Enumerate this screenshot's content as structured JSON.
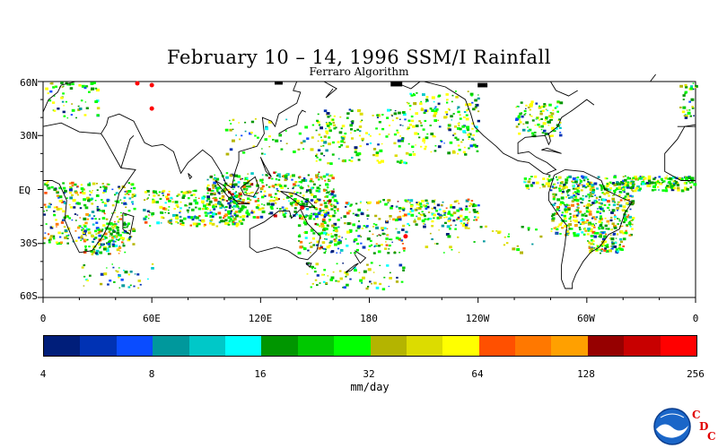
{
  "title": "February 10 – 14, 1996 SSM/I Rainfall",
  "subtitle": "Ferraro Algorithm",
  "map": {
    "lat_labels": [
      "60N",
      "30N",
      "EQ",
      "30S",
      "60S"
    ],
    "lon_labels": [
      "0",
      "60E",
      "120E",
      "180",
      "120W",
      "60W",
      "0"
    ],
    "colors": {
      "land_outline": "#000000",
      "background": "#ffffff"
    }
  },
  "colorbar": {
    "colors": [
      "#001e7a",
      "#0032b4",
      "#0a4cff",
      "#00989c",
      "#00c8c8",
      "#00ffff",
      "#009600",
      "#00c800",
      "#00ff00",
      "#b4b400",
      "#dcdc00",
      "#ffff00",
      "#ff5000",
      "#ff7800",
      "#ffa000",
      "#960000",
      "#c80000",
      "#ff0000"
    ],
    "tick_labels": [
      "4",
      "8",
      "16",
      "32",
      "64",
      "128",
      "256"
    ],
    "units": "mm/day"
  },
  "logo": {
    "name": "NOAA",
    "letters": [
      "C",
      "D",
      "C"
    ]
  }
}
